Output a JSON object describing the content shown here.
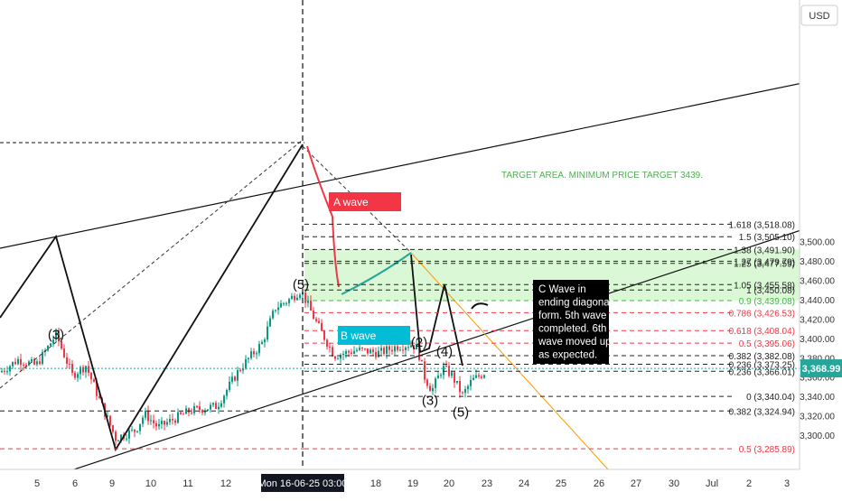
{
  "currency": "USD",
  "last_price_label": "3,368.99",
  "crosshair_time_label": "Mon 16-06-25   03:00",
  "colors": {
    "accent_teal": "#26a69a",
    "fib_green": "#4caf50",
    "fib_red": "#f23645",
    "fib_orange": "#ff9800",
    "fib_gray": "#555555",
    "target_zone": "#d4f7cf",
    "a_wave_bg": "#f23645",
    "b_wave_bg": "#00bcd4",
    "note_bg": "#000000"
  },
  "chart_data": {
    "type": "candlestick",
    "symbol_currency": "USD",
    "last_price": 3368.99,
    "x_ticks": [
      "5",
      "6",
      "9",
      "10",
      "11",
      "12",
      "Mon 16-06-25   03:00",
      "18",
      "19",
      "20",
      "23",
      "24",
      "25",
      "26",
      "27",
      "30",
      "Jul",
      "2",
      "3"
    ],
    "y_ticks": [
      3300,
      3320,
      3340,
      3360,
      3380,
      3400,
      3420,
      3440,
      3460,
      3480,
      3500
    ],
    "ylim": [
      3280,
      3525
    ],
    "fib_levels": [
      {
        "ratio": "1.618",
        "price": "3,518.08",
        "value": 3518.08,
        "style": "dashed",
        "color": "#222222"
      },
      {
        "ratio": "1.5",
        "price": "3,505.10",
        "value": 3505.1,
        "style": "dashed",
        "color": "#222222"
      },
      {
        "ratio": "1.38",
        "price": "3,491.90",
        "value": 3491.9,
        "style": "dashed",
        "color": "#222222"
      },
      {
        "ratio": "1.27",
        "price": "3,479.79",
        "value": 3479.79,
        "style": "dashed",
        "color": "#222222"
      },
      {
        "ratio": "1.25",
        "price": "3,477.59",
        "value": 3477.59,
        "style": "dashed",
        "color": "#222222"
      },
      {
        "ratio": "1.05",
        "price": "3,455.58",
        "value": 3455.58,
        "style": "dashed",
        "color": "#222222"
      },
      {
        "ratio": "1",
        "price": "3,450.08",
        "value": 3450.08,
        "style": "dashed",
        "color": "#222222"
      },
      {
        "ratio": "0.9",
        "price": "3,439.08",
        "value": 3439.08,
        "style": "dashed",
        "color": "#4caf50"
      },
      {
        "ratio": "0.786",
        "price": "3,426.53",
        "value": 3426.53,
        "style": "dashed",
        "color": "#f23645"
      },
      {
        "ratio": "0.618",
        "price": "3,408.04",
        "value": 3408.04,
        "style": "dashed",
        "color": "#f23645"
      },
      {
        "ratio": "0.5",
        "price": "3,395.06",
        "value": 3395.06,
        "style": "dashed",
        "color": "#f23645"
      },
      {
        "ratio": "0.382",
        "price": "3,382.08",
        "value": 3382.08,
        "style": "dashed",
        "color": "#222222"
      },
      {
        "ratio": "0.236",
        "price": "3,373.25",
        "value": 3373.25,
        "style": "dashed",
        "color": "#222222"
      },
      {
        "ratio": "0.236",
        "price": "3,366.01",
        "value": 3366.01,
        "style": "dashed",
        "color": "#222222"
      },
      {
        "ratio": "0",
        "price": "3,340.04",
        "value": 3340.04,
        "style": "dashed",
        "color": "#222222"
      },
      {
        "ratio": "0.382",
        "price": "3,324.94",
        "value": 3324.94,
        "style": "dashed",
        "color": "#222222"
      },
      {
        "ratio": "0.5",
        "price": "3,285.89",
        "value": 3285.89,
        "style": "dashed",
        "color": "#f23645"
      }
    ],
    "target_zone": {
      "from": 3439.08,
      "to": 3491.9
    },
    "wave_labels": [
      {
        "text": "(3)",
        "x": 62,
        "y": 3404
      },
      {
        "text": "(5)",
        "x": 333,
        "y": 3456
      },
      {
        "text": "(2)",
        "x": 464,
        "y": 3396
      },
      {
        "text": "(4)",
        "x": 492,
        "y": 3387
      },
      {
        "text": "(3)",
        "x": 476,
        "y": 3336
      },
      {
        "text": "(5)",
        "x": 510,
        "y": 3324
      }
    ],
    "annotations": {
      "target_text": "TARGET AREA. MINIMUM PRICE TARGET 3439.",
      "a_wave": "A wave",
      "b_wave": "B wave",
      "note_lines": [
        "C Wave in",
        "ending diagonal",
        "form. 5th wave",
        "completed. 6th",
        "wave moved up",
        "as expected."
      ]
    }
  }
}
